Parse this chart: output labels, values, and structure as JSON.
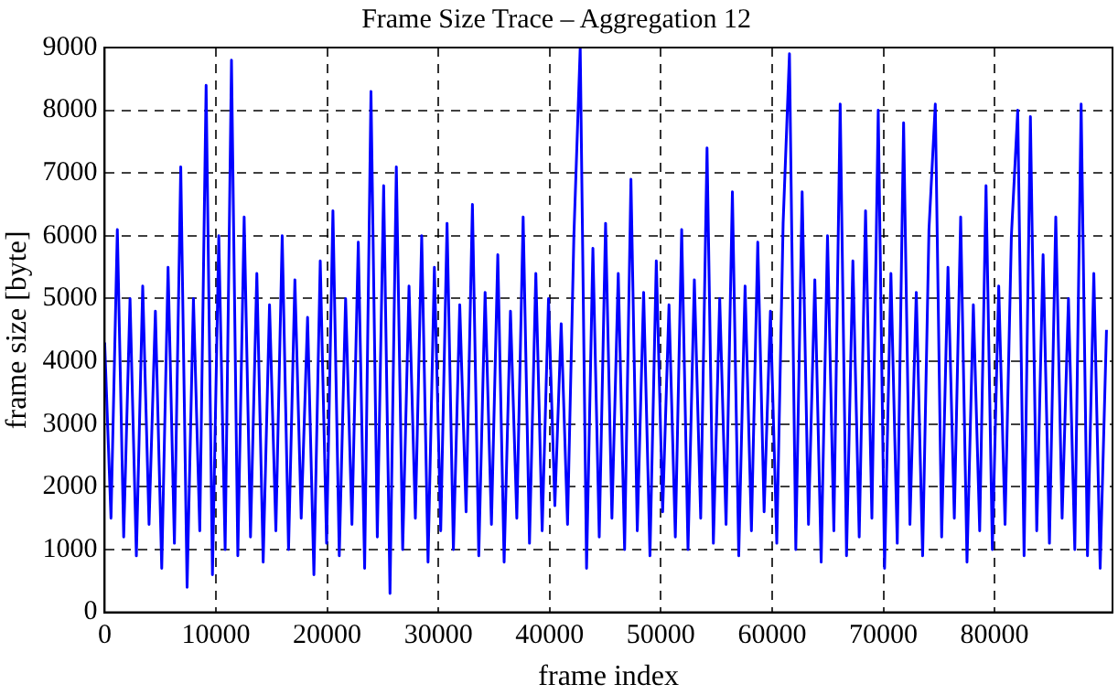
{
  "chart_data": {
    "type": "line",
    "title": "Frame Size Trace – Aggregation 12",
    "xlabel": "frame index",
    "ylabel": "frame size [byte]",
    "x": [
      0,
      570,
      1140,
      1710,
      2280,
      2850,
      3420,
      3990,
      4560,
      5130,
      5700,
      6270,
      6840,
      7410,
      7980,
      8550,
      9120,
      9690,
      10260,
      10830,
      11400,
      11970,
      12540,
      13110,
      13680,
      14250,
      14820,
      15390,
      15960,
      16530,
      17100,
      17670,
      18240,
      18810,
      19380,
      19950,
      20520,
      21090,
      21660,
      22230,
      22800,
      23370,
      23940,
      24510,
      25080,
      25650,
      26220,
      26790,
      27360,
      27930,
      28500,
      29070,
      29640,
      30210,
      30780,
      31350,
      31920,
      32490,
      33060,
      33630,
      34200,
      34770,
      35340,
      35910,
      36480,
      37050,
      37620,
      38190,
      38760,
      39330,
      39900,
      40470,
      41040,
      41610,
      42180,
      42750,
      43320,
      43890,
      44460,
      45030,
      45600,
      46170,
      46740,
      47310,
      47880,
      48450,
      49020,
      49590,
      50160,
      50730,
      51300,
      51870,
      52440,
      53010,
      53580,
      54150,
      54720,
      55290,
      55860,
      56430,
      57000,
      57570,
      58140,
      58710,
      59280,
      59850,
      60420,
      60990,
      61560,
      62130,
      62700,
      63270,
      63840,
      64410,
      64980,
      65550,
      66120,
      66690,
      67260,
      67830,
      68400,
      68970,
      69540,
      70110,
      70680,
      71250,
      71820,
      72390,
      72960,
      73530,
      74100,
      74670,
      75240,
      75810,
      76380,
      76950,
      77520,
      78090,
      78660,
      79230,
      79800,
      80370,
      80940,
      81510,
      82080,
      82650,
      83220,
      83790,
      84360,
      84930,
      85500,
      86070,
      86640,
      87210,
      87780,
      88350,
      88920,
      89490,
      90060
    ],
    "series": [
      {
        "color": "#0000ff",
        "values": [
          4300,
          1500,
          6100,
          1200,
          5000,
          900,
          5200,
          1400,
          4800,
          700,
          5500,
          1100,
          7100,
          400,
          5000,
          1300,
          8400,
          600,
          6000,
          1000,
          8800,
          900,
          6300,
          1200,
          5400,
          800,
          4900,
          1300,
          6000,
          1000,
          5300,
          1500,
          4700,
          600,
          5600,
          1100,
          6400,
          900,
          5000,
          1400,
          5900,
          700,
          8300,
          1200,
          6800,
          300,
          7100,
          1000,
          5200,
          1500,
          6000,
          800,
          5500,
          1300,
          6200,
          1000,
          4900,
          1600,
          6500,
          900,
          5100,
          1400,
          5700,
          800,
          4800,
          1500,
          6300,
          1100,
          5400,
          1300,
          5000,
          1700,
          4600,
          1400,
          6000,
          9000,
          700,
          5800,
          1200,
          6200,
          1500,
          5400,
          1000,
          6900,
          1300,
          5100,
          900,
          5600,
          1600,
          4900,
          1200,
          6100,
          1000,
          5300,
          1500,
          7400,
          1100,
          5000,
          1400,
          6700,
          900,
          5200,
          1300,
          5900,
          1600,
          4800,
          1100,
          6200,
          8900,
          1000,
          6700,
          1400,
          5300,
          800,
          6000,
          1300,
          8100,
          900,
          5600,
          1200,
          6400,
          1500,
          8000,
          700,
          5400,
          1100,
          7800,
          1400,
          5100,
          900,
          6100,
          8100,
          1200,
          5500,
          1500,
          6300,
          800,
          4900,
          1300,
          6800,
          1000,
          5200,
          1400,
          6000,
          8000,
          900,
          7900,
          1300,
          5700,
          1100,
          6300,
          1500,
          5000,
          1000,
          8100,
          900,
          5400,
          700,
          4500
        ]
      }
    ],
    "xlim": [
      0,
      90600
    ],
    "ylim": [
      0,
      9000
    ],
    "xticks": [
      0,
      10000,
      20000,
      30000,
      40000,
      50000,
      60000,
      70000,
      80000
    ],
    "yticks": [
      0,
      1000,
      2000,
      3000,
      4000,
      5000,
      6000,
      7000,
      8000,
      9000
    ],
    "grid": true,
    "legend": false,
    "marker": "none",
    "line_style": "solid"
  }
}
